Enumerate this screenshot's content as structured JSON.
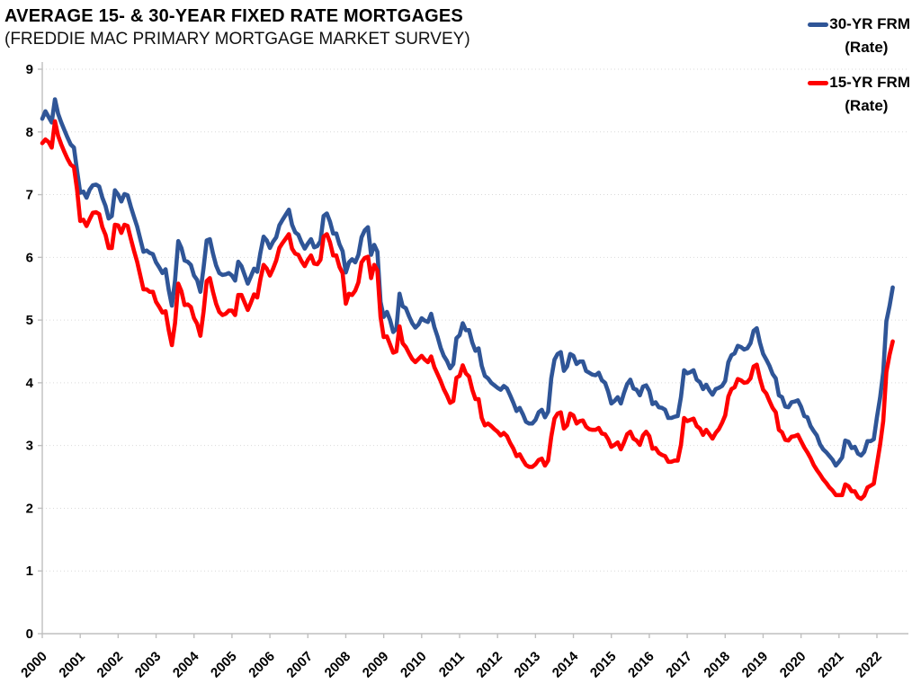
{
  "header": {
    "title": "AVERAGE 15- & 30-YEAR FIXED RATE MORTGAGES",
    "subtitle": "(FREDDIE MAC PRIMARY MORTGAGE MARKET SURVEY)"
  },
  "legend": {
    "position": "top-right",
    "entries": [
      {
        "line1": "30-YR FRM",
        "line2": "(Rate)",
        "color": "#2F5597"
      },
      {
        "line1": "15-YR FRM",
        "line2": "(Rate)",
        "color": "#FF0000"
      }
    ]
  },
  "styles": {
    "gridline_color": "#D9D9D9",
    "axis_color": "#BFBFBF",
    "text_color": "#000000",
    "background": "#FFFFFF"
  },
  "chart_data": {
    "type": "line",
    "title": "AVERAGE 15- & 30-YEAR FIXED RATE MORTGAGES",
    "subtitle": "(FREDDIE MAC PRIMARY MORTGAGE MARKET SURVEY)",
    "xlabel": "",
    "ylabel": "",
    "x_unit": "monthly",
    "x_start": "2000-01",
    "x_end": "2022-06",
    "x_tick_labels": [
      "2000",
      "2001",
      "2002",
      "2003",
      "2004",
      "2005",
      "2006",
      "2007",
      "2008",
      "2009",
      "2010",
      "2011",
      "2012",
      "2013",
      "2014",
      "2015",
      "2016",
      "2017",
      "2018",
      "2019",
      "2020",
      "2021",
      "2022"
    ],
    "y_ticks": [
      0,
      1,
      2,
      3,
      4,
      5,
      6,
      7,
      8,
      9
    ],
    "ylim": [
      0,
      9
    ],
    "grid": "horizontal-dotted",
    "legend_position": "top-right",
    "series": [
      {
        "name": "30-YR FRM (Rate)",
        "color": "#2F5597",
        "values": [
          8.21,
          8.33,
          8.24,
          8.15,
          8.52,
          8.29,
          8.15,
          8.03,
          7.91,
          7.8,
          7.75,
          7.38,
          7.03,
          7.05,
          6.95,
          7.08,
          7.15,
          7.16,
          7.13,
          6.95,
          6.82,
          6.62,
          6.66,
          7.07,
          7.0,
          6.89,
          7.01,
          6.99,
          6.81,
          6.65,
          6.49,
          6.29,
          6.09,
          6.11,
          6.07,
          6.05,
          5.92,
          5.84,
          5.75,
          5.81,
          5.48,
          5.23,
          5.63,
          6.26,
          6.15,
          5.95,
          5.93,
          5.88,
          5.71,
          5.64,
          5.45,
          5.83,
          6.27,
          6.29,
          6.06,
          5.87,
          5.75,
          5.72,
          5.73,
          5.75,
          5.71,
          5.63,
          5.93,
          5.86,
          5.72,
          5.58,
          5.7,
          5.82,
          5.77,
          6.07,
          6.33,
          6.27,
          6.15,
          6.25,
          6.32,
          6.51,
          6.6,
          6.68,
          6.76,
          6.52,
          6.4,
          6.36,
          6.24,
          6.14,
          6.22,
          6.29,
          6.16,
          6.18,
          6.26,
          6.66,
          6.7,
          6.57,
          6.38,
          6.38,
          6.21,
          6.1,
          5.76,
          5.92,
          5.97,
          5.92,
          6.04,
          6.32,
          6.43,
          6.48,
          6.04,
          6.2,
          6.09,
          5.29,
          5.05,
          5.13,
          5.0,
          4.81,
          4.86,
          5.42,
          5.22,
          5.19,
          5.06,
          4.95,
          4.88,
          4.93,
          5.03,
          4.99,
          4.97,
          5.1,
          4.89,
          4.74,
          4.56,
          4.43,
          4.35,
          4.23,
          4.3,
          4.71,
          4.76,
          4.95,
          4.84,
          4.84,
          4.64,
          4.51,
          4.55,
          4.27,
          4.11,
          4.07,
          4.0,
          3.96,
          3.92,
          3.89,
          3.95,
          3.91,
          3.8,
          3.68,
          3.55,
          3.6,
          3.5,
          3.38,
          3.35,
          3.35,
          3.41,
          3.53,
          3.57,
          3.45,
          3.54,
          4.07,
          4.37,
          4.46,
          4.49,
          4.19,
          4.26,
          4.46,
          4.43,
          4.3,
          4.34,
          4.34,
          4.19,
          4.16,
          4.13,
          4.12,
          4.16,
          4.04,
          4.0,
          3.86,
          3.67,
          3.71,
          3.77,
          3.67,
          3.84,
          3.98,
          4.05,
          3.91,
          3.89,
          3.8,
          3.94,
          3.96,
          3.87,
          3.66,
          3.69,
          3.61,
          3.6,
          3.57,
          3.44,
          3.44,
          3.46,
          3.47,
          3.77,
          4.2,
          4.15,
          4.17,
          4.2,
          4.05,
          4.01,
          3.9,
          3.97,
          3.88,
          3.81,
          3.9,
          3.92,
          3.95,
          4.03,
          4.33,
          4.44,
          4.47,
          4.59,
          4.57,
          4.53,
          4.55,
          4.63,
          4.83,
          4.87,
          4.64,
          4.46,
          4.37,
          4.27,
          4.14,
          4.07,
          3.8,
          3.77,
          3.62,
          3.61,
          3.69,
          3.7,
          3.72,
          3.62,
          3.47,
          3.45,
          3.31,
          3.23,
          3.16,
          3.02,
          2.94,
          2.89,
          2.83,
          2.77,
          2.68,
          2.74,
          2.81,
          3.08,
          3.06,
          2.96,
          2.98,
          2.87,
          2.84,
          2.9,
          3.07,
          3.07,
          3.1,
          3.45,
          3.76,
          4.17,
          4.98,
          5.23,
          5.52
        ]
      },
      {
        "name": "15-YR FRM (Rate)",
        "color": "#FF0000",
        "values": [
          7.82,
          7.88,
          7.84,
          7.75,
          8.17,
          7.94,
          7.8,
          7.68,
          7.57,
          7.48,
          7.44,
          7.08,
          6.58,
          6.6,
          6.5,
          6.61,
          6.71,
          6.72,
          6.69,
          6.48,
          6.36,
          6.15,
          6.15,
          6.52,
          6.51,
          6.39,
          6.52,
          6.5,
          6.3,
          6.11,
          5.93,
          5.71,
          5.49,
          5.49,
          5.45,
          5.45,
          5.29,
          5.21,
          5.12,
          5.14,
          4.84,
          4.6,
          4.95,
          5.58,
          5.46,
          5.24,
          5.25,
          5.21,
          5.03,
          4.94,
          4.75,
          5.13,
          5.62,
          5.67,
          5.45,
          5.26,
          5.13,
          5.08,
          5.1,
          5.15,
          5.15,
          5.08,
          5.4,
          5.4,
          5.28,
          5.16,
          5.28,
          5.41,
          5.36,
          5.65,
          5.88,
          5.82,
          5.71,
          5.82,
          5.95,
          6.15,
          6.23,
          6.3,
          6.37,
          6.14,
          6.06,
          6.04,
          5.94,
          5.86,
          5.96,
          6.03,
          5.9,
          5.89,
          5.96,
          6.33,
          6.37,
          6.24,
          6.03,
          6.03,
          5.85,
          5.75,
          5.26,
          5.42,
          5.4,
          5.47,
          5.6,
          5.92,
          5.99,
          6.01,
          5.67,
          5.88,
          5.79,
          5.05,
          4.73,
          4.74,
          4.61,
          4.48,
          4.5,
          4.9,
          4.63,
          4.57,
          4.47,
          4.38,
          4.33,
          4.38,
          4.43,
          4.37,
          4.33,
          4.42,
          4.25,
          4.14,
          4.03,
          3.9,
          3.8,
          3.68,
          3.71,
          4.08,
          4.11,
          4.28,
          4.15,
          4.1,
          3.89,
          3.74,
          3.74,
          3.44,
          3.32,
          3.35,
          3.31,
          3.26,
          3.22,
          3.16,
          3.2,
          3.15,
          3.04,
          2.95,
          2.83,
          2.86,
          2.77,
          2.69,
          2.66,
          2.66,
          2.7,
          2.77,
          2.79,
          2.68,
          2.76,
          3.14,
          3.43,
          3.51,
          3.53,
          3.27,
          3.32,
          3.51,
          3.48,
          3.35,
          3.39,
          3.4,
          3.3,
          3.26,
          3.25,
          3.25,
          3.28,
          3.19,
          3.18,
          3.1,
          2.98,
          3.01,
          3.05,
          2.94,
          3.05,
          3.18,
          3.22,
          3.11,
          3.08,
          3.01,
          3.16,
          3.22,
          3.15,
          2.95,
          2.96,
          2.88,
          2.85,
          2.83,
          2.74,
          2.74,
          2.76,
          2.76,
          3.01,
          3.44,
          3.39,
          3.41,
          3.43,
          3.31,
          3.27,
          3.17,
          3.25,
          3.18,
          3.11,
          3.2,
          3.26,
          3.36,
          3.48,
          3.78,
          3.9,
          3.93,
          4.06,
          4.04,
          4.0,
          4.01,
          4.07,
          4.26,
          4.29,
          4.07,
          3.89,
          3.83,
          3.71,
          3.6,
          3.53,
          3.25,
          3.21,
          3.09,
          3.08,
          3.14,
          3.15,
          3.17,
          3.07,
          2.97,
          2.89,
          2.8,
          2.69,
          2.61,
          2.54,
          2.46,
          2.4,
          2.33,
          2.28,
          2.21,
          2.21,
          2.21,
          2.38,
          2.35,
          2.27,
          2.27,
          2.18,
          2.15,
          2.2,
          2.33,
          2.36,
          2.39,
          2.7,
          3.01,
          3.39,
          4.17,
          4.45,
          4.66
        ]
      }
    ]
  }
}
